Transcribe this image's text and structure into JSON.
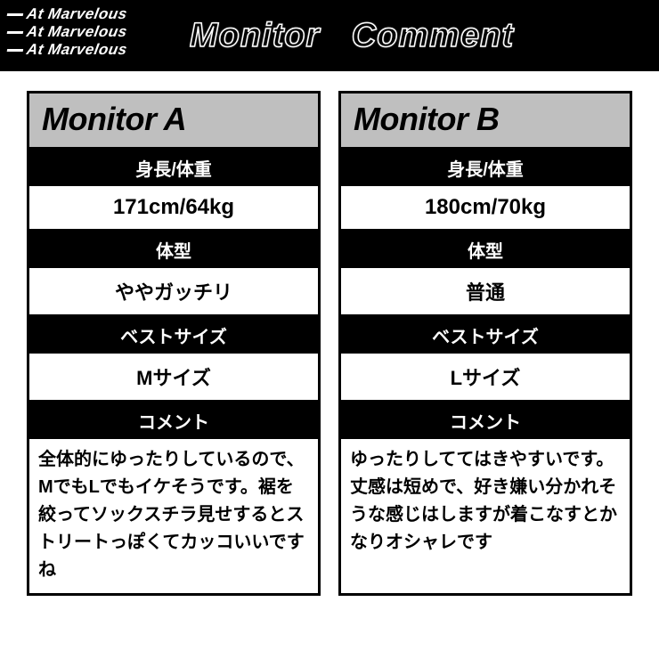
{
  "header": {
    "logo_text": "At Marvelous",
    "logo_font_size": "17px",
    "title": "Monitor Comment"
  },
  "labels": {
    "height_weight": "身長/体重",
    "body_type": "体型",
    "best_size": "ベストサイズ",
    "comment": "コメント"
  },
  "monitors": [
    {
      "title": "Monitor A",
      "height_weight": "171cm/64kg",
      "body_type": "ややガッチリ",
      "best_size": "Mサイズ",
      "comment": "全体的にゆったりしているので、MでもLでもイケそうです。裾を絞ってソックスチラ見せするとストリートっぽくてカッコいいですね"
    },
    {
      "title": "Monitor B",
      "height_weight": "180cm/70kg",
      "body_type": "普通",
      "best_size": "Lサイズ",
      "comment": "ゆったりしててはきやすいです。丈感は短めで、好き嫌い分かれそうな感じはしますが着こなすとかなりオシャレです"
    }
  ],
  "colors": {
    "black": "#000000",
    "white": "#ffffff",
    "title_gray": "#bfbfbf"
  }
}
